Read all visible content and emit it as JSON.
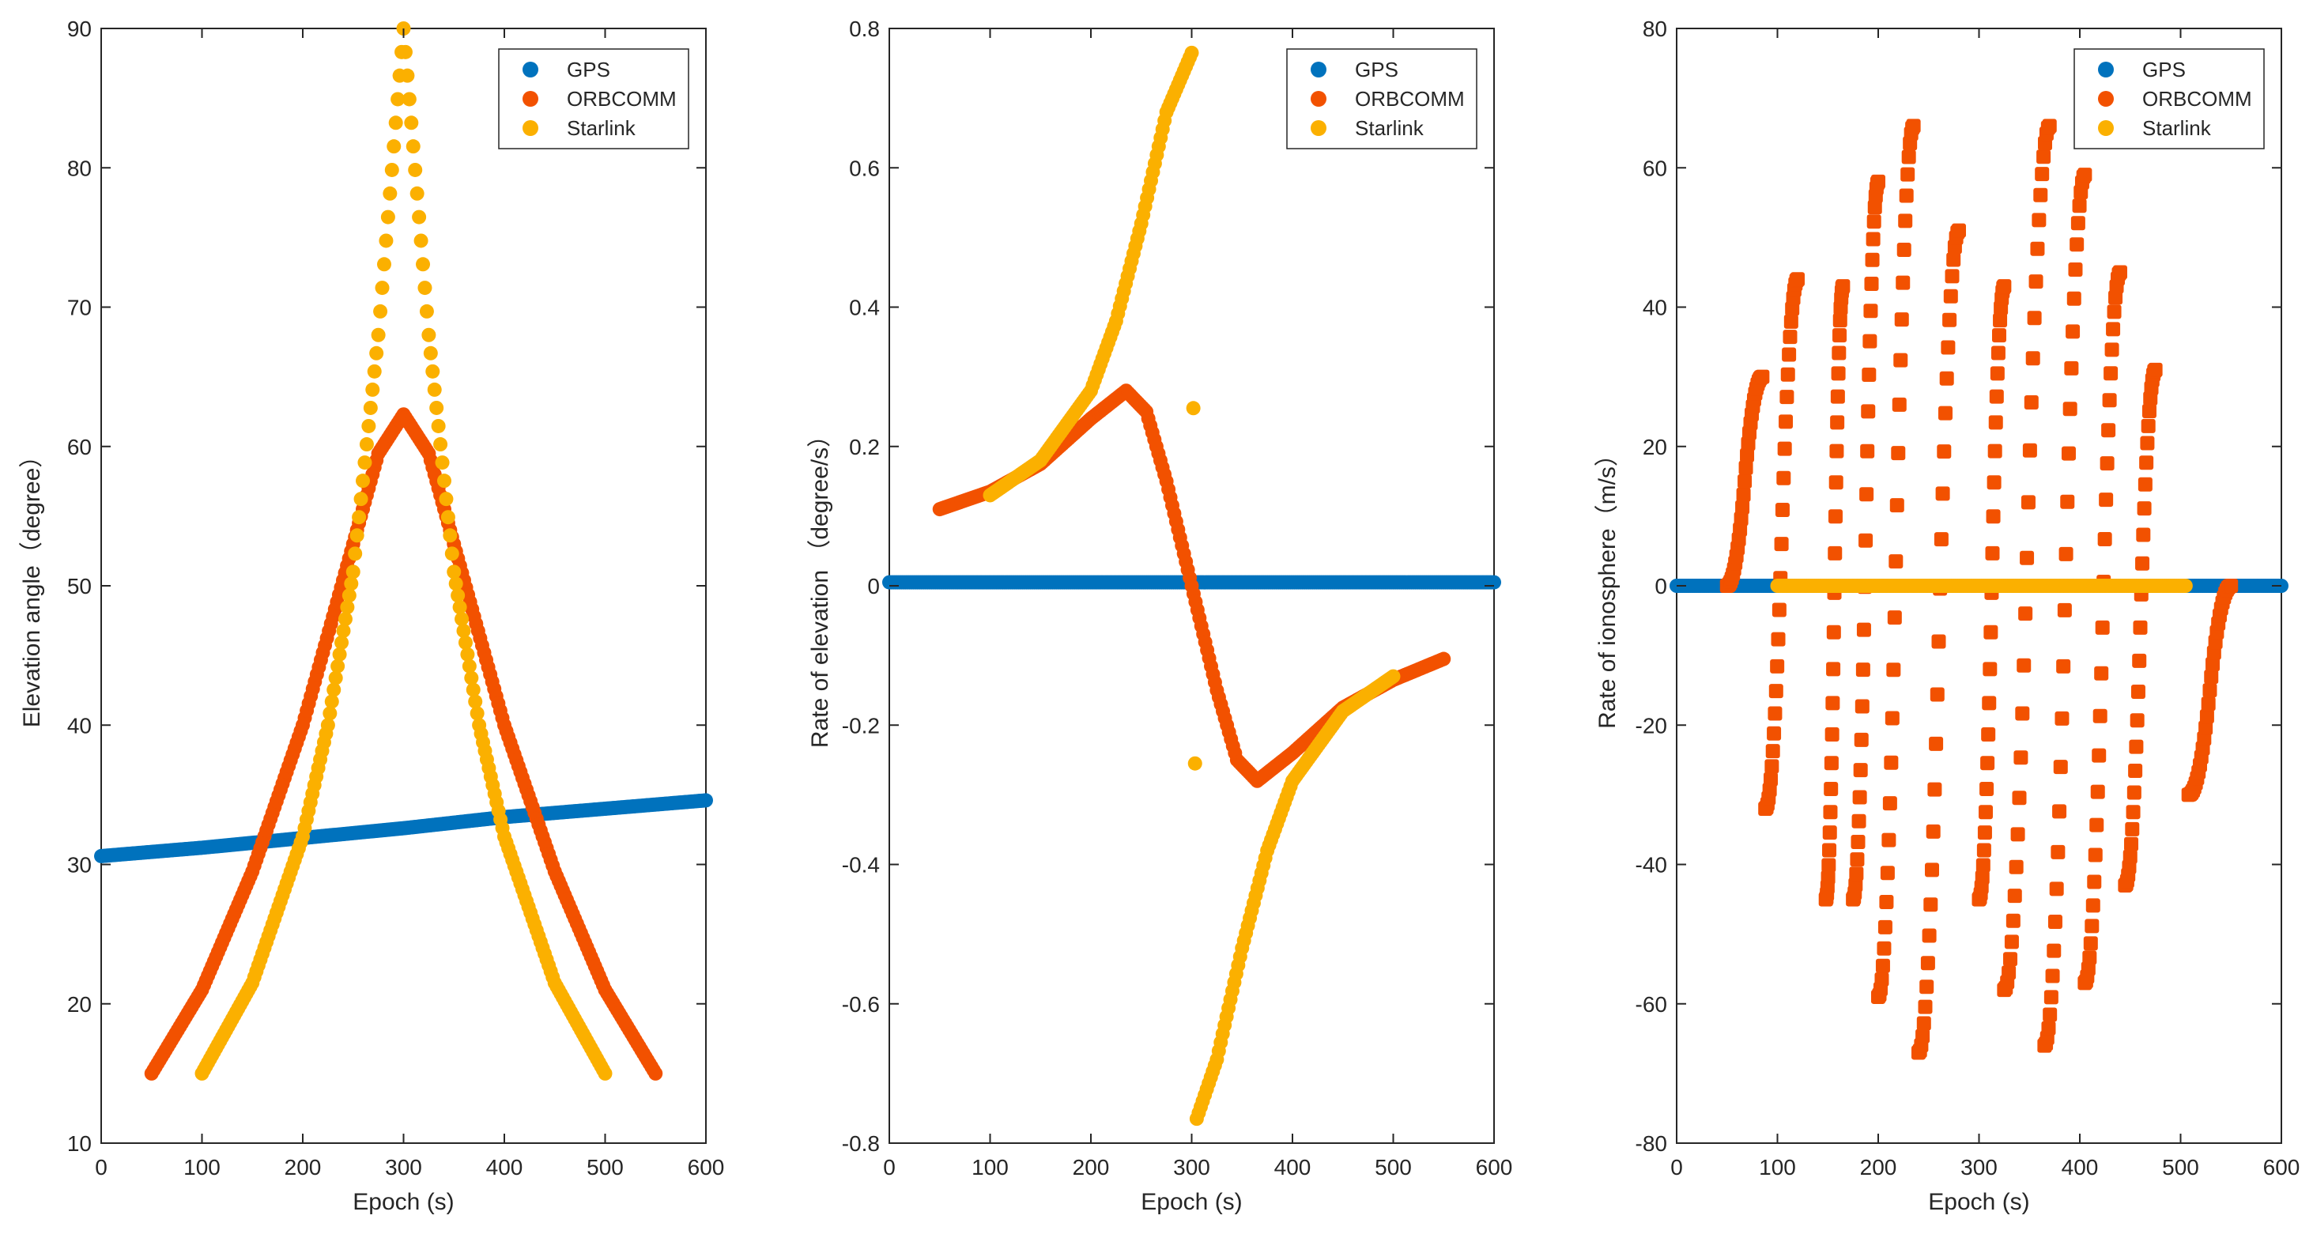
{
  "colors": {
    "gps": "#0072BD",
    "orbcomm": "#F25100",
    "starlink": "#FBB000",
    "axis": "#262626",
    "background": "#ffffff"
  },
  "chart_data": [
    {
      "type": "scatter",
      "title": "",
      "xlabel": "Epoch (s)",
      "ylabel": "Elevation angle（degree）",
      "xlim": [
        0,
        600
      ],
      "ylim": [
        10,
        90
      ],
      "xticks": [
        0,
        100,
        200,
        300,
        400,
        500,
        600
      ],
      "yticks": [
        10,
        20,
        30,
        40,
        50,
        60,
        70,
        80,
        90
      ],
      "legend": {
        "location": "top-right",
        "entries": [
          "GPS",
          "ORBCOMM",
          "Starlink"
        ]
      },
      "series": [
        {
          "name": "GPS",
          "color": "gps",
          "points": [
            [
              0,
              30.6
            ],
            [
              100,
              31.2
            ],
            [
              200,
              31.9
            ],
            [
              300,
              32.6
            ],
            [
              400,
              33.4
            ],
            [
              500,
              34.0
            ],
            [
              600,
              34.6
            ]
          ]
        },
        {
          "name": "ORBCOMM",
          "color": "orbcomm",
          "points": [
            [
              50,
              15
            ],
            [
              100,
              21
            ],
            [
              150,
              29.5
            ],
            [
              200,
              40
            ],
            [
              250,
              53
            ],
            [
              275,
              59.5
            ],
            [
              300,
              62.3
            ],
            [
              325,
              59.5
            ],
            [
              350,
              53
            ],
            [
              400,
              40
            ],
            [
              450,
              29.5
            ],
            [
              500,
              21
            ],
            [
              550,
              15
            ]
          ]
        },
        {
          "name": "Starlink",
          "color": "starlink",
          "points": [
            [
              100,
              15
            ],
            [
              150,
              21.5
            ],
            [
              200,
              32
            ],
            [
              225,
              40
            ],
            [
              250,
              51
            ],
            [
              275,
              68
            ],
            [
              300,
              90
            ],
            [
              325,
              68
            ],
            [
              350,
              51
            ],
            [
              375,
              40
            ],
            [
              400,
              32
            ],
            [
              450,
              21.5
            ],
            [
              500,
              15
            ]
          ]
        }
      ]
    },
    {
      "type": "scatter",
      "title": "",
      "xlabel": "Epoch (s)",
      "ylabel": "Rate of elevation （degree/s）",
      "xlim": [
        0,
        600
      ],
      "ylim": [
        -0.8,
        0.8
      ],
      "xticks": [
        0,
        100,
        200,
        300,
        400,
        500,
        600
      ],
      "yticks": [
        -0.8,
        -0.6,
        -0.4,
        -0.2,
        0,
        0.2,
        0.4,
        0.6,
        0.8
      ],
      "legend": {
        "location": "top-right",
        "entries": [
          "GPS",
          "ORBCOMM",
          "Starlink"
        ]
      },
      "series": [
        {
          "name": "GPS",
          "color": "gps",
          "points": [
            [
              0,
              0.005
            ],
            [
              600,
              0.005
            ]
          ]
        },
        {
          "name": "ORBCOMM",
          "color": "orbcomm",
          "points": [
            [
              50,
              0.11
            ],
            [
              100,
              0.135
            ],
            [
              150,
              0.175
            ],
            [
              200,
              0.24
            ],
            [
              235,
              0.28
            ],
            [
              255,
              0.25
            ],
            [
              275,
              0.15
            ],
            [
              300,
              0.0
            ],
            [
              325,
              -0.15
            ],
            [
              345,
              -0.25
            ],
            [
              365,
              -0.28
            ],
            [
              400,
              -0.24
            ],
            [
              450,
              -0.175
            ],
            [
              500,
              -0.135
            ],
            [
              550,
              -0.105
            ]
          ]
        },
        {
          "name": "Starlink",
          "color": "starlink",
          "points": [
            [
              100,
              0.13
            ],
            [
              150,
              0.18
            ],
            [
              200,
              0.28
            ],
            [
              225,
              0.38
            ],
            [
              250,
              0.52
            ],
            [
              275,
              0.68
            ],
            [
              300,
              0.765
            ],
            [
              305,
              -0.765
            ],
            [
              325,
              -0.68
            ],
            [
              350,
              -0.52
            ],
            [
              375,
              -0.38
            ],
            [
              400,
              -0.28
            ],
            [
              450,
              -0.18
            ],
            [
              500,
              -0.13
            ]
          ]
        }
      ]
    },
    {
      "type": "scatter",
      "title": "",
      "xlabel": "Epoch (s)",
      "ylabel": "Rate of ionosphere（m/s）",
      "xlim": [
        0,
        600
      ],
      "ylim": [
        -80,
        80
      ],
      "xticks": [
        0,
        100,
        200,
        300,
        400,
        500,
        600
      ],
      "yticks": [
        -80,
        -60,
        -40,
        -20,
        0,
        20,
        40,
        60,
        80
      ],
      "legend": {
        "location": "top-right",
        "entries": [
          "GPS",
          "ORBCOMM",
          "Starlink"
        ]
      },
      "series": [
        {
          "name": "GPS",
          "color": "gps",
          "points": [
            [
              0,
              0
            ],
            [
              600,
              0
            ]
          ]
        },
        {
          "name": "ORBCOMM",
          "color": "orbcomm",
          "segments": [
            {
              "x0": 50,
              "x1": 85,
              "y0": 0,
              "y1": 30
            },
            {
              "x0": 88,
              "x1": 120,
              "y0": -32,
              "y1": 44
            },
            {
              "x0": 148,
              "x1": 165,
              "y0": -45,
              "y1": 43
            },
            {
              "x0": 175,
              "x1": 200,
              "y0": -45,
              "y1": 58
            },
            {
              "x0": 200,
              "x1": 235,
              "y0": -59,
              "y1": 66
            },
            {
              "x0": 240,
              "x1": 280,
              "y0": -67,
              "y1": 51
            },
            {
              "x0": 300,
              "x1": 325,
              "y0": -45,
              "y1": 43
            },
            {
              "x0": 325,
              "x1": 370,
              "y0": -58,
              "y1": 66
            },
            {
              "x0": 365,
              "x1": 405,
              "y0": -66,
              "y1": 59
            },
            {
              "x0": 405,
              "x1": 440,
              "y0": -57,
              "y1": 45
            },
            {
              "x0": 445,
              "x1": 475,
              "y0": -43,
              "y1": 31
            },
            {
              "x0": 508,
              "x1": 550,
              "y0": -30,
              "y1": 0
            }
          ]
        },
        {
          "name": "Starlink",
          "color": "starlink",
          "points": [
            [
              100,
              0
            ],
            [
              505,
              0
            ]
          ]
        }
      ]
    }
  ]
}
